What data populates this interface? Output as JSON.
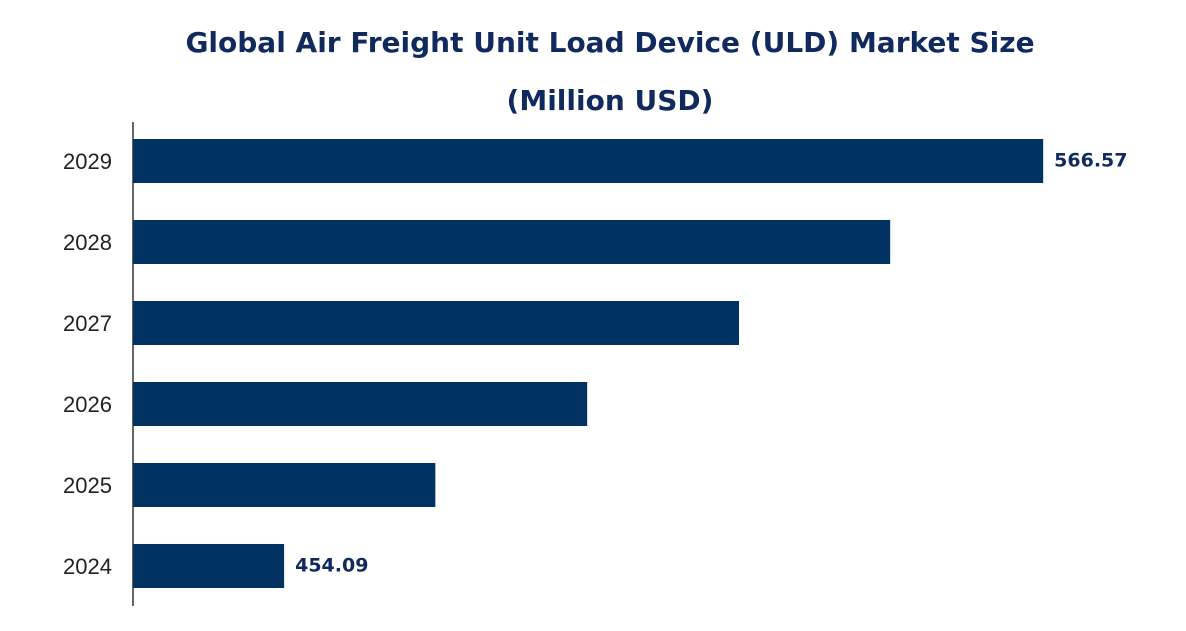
{
  "chart_data": {
    "type": "bar",
    "orientation": "horizontal",
    "title": "Global Air Freight Unit Load Device (ULD) Market Size (Million USD)",
    "categories": [
      "2024",
      "2025",
      "2026",
      "2027",
      "2028",
      "2029"
    ],
    "values": [
      454.09,
      476.5,
      499.0,
      521.5,
      543.9,
      566.57
    ],
    "color": "#003361",
    "xlim": [
      431.7,
      582.4
    ]
  }
}
